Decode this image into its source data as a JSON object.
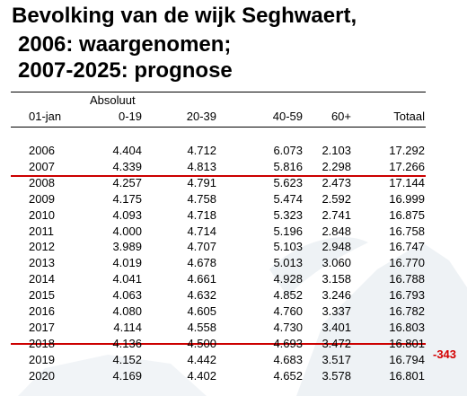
{
  "title_lines": [
    "Bevolking van de wijk Seghwaert,",
    "2006: waargenomen;",
    "2007-2025: prognose"
  ],
  "table": {
    "group_header": "Absoluut",
    "columns": [
      "01-jan",
      "0-19",
      "20-39",
      "40-59",
      "60+",
      "Totaal"
    ],
    "rows": [
      [
        "2006",
        "4.404",
        "4.712",
        "6.073",
        "2.103",
        "17.292"
      ],
      [
        "2007",
        "4.339",
        "4.813",
        "5.816",
        "2.298",
        "17.266"
      ],
      [
        "2008",
        "4.257",
        "4.791",
        "5.623",
        "2.473",
        "17.144"
      ],
      [
        "2009",
        "4.175",
        "4.758",
        "5.474",
        "2.592",
        "16.999"
      ],
      [
        "2010",
        "4.093",
        "4.718",
        "5.323",
        "2.741",
        "16.875"
      ],
      [
        "2011",
        "4.000",
        "4.714",
        "5.196",
        "2.848",
        "16.758"
      ],
      [
        "2012",
        "3.989",
        "4.707",
        "5.103",
        "2.948",
        "16.747"
      ],
      [
        "2013",
        "4.019",
        "4.678",
        "5.013",
        "3.060",
        "16.770"
      ],
      [
        "2014",
        "4.041",
        "4.661",
        "4.928",
        "3.158",
        "16.788"
      ],
      [
        "2015",
        "4.063",
        "4.632",
        "4.852",
        "3.246",
        "16.793"
      ],
      [
        "2016",
        "4.080",
        "4.605",
        "4.760",
        "3.337",
        "16.782"
      ],
      [
        "2017",
        "4.114",
        "4.558",
        "4.730",
        "3.401",
        "16.803"
      ],
      [
        "2018",
        "4.136",
        "4.500",
        "4.693",
        "3.472",
        "16.801"
      ],
      [
        "2019",
        "4.152",
        "4.442",
        "4.683",
        "3.517",
        "16.794"
      ],
      [
        "2020",
        "4.169",
        "4.402",
        "4.652",
        "3.578",
        "16.801"
      ]
    ]
  },
  "annotation": "-343",
  "colors": {
    "text": "#000000",
    "divider_red": "#cc0000",
    "annotation_red": "#d40000",
    "background_shape": "#e8eef2"
  }
}
